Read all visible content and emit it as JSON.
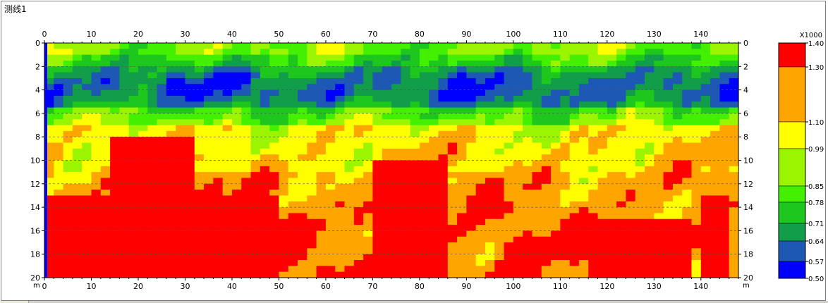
{
  "window": {
    "title": "测线1"
  },
  "chart_data": {
    "type": "heatmap",
    "title": "",
    "xlabel": "",
    "ylabel": "",
    "x_unit": "m",
    "y_unit": "m",
    "xlim": [
      0,
      148
    ],
    "ylim": [
      0,
      20
    ],
    "x_ticks": [
      0,
      10,
      20,
      30,
      40,
      50,
      60,
      70,
      80,
      90,
      100,
      110,
      120,
      130,
      140
    ],
    "y_ticks": [
      0,
      2,
      4,
      6,
      8,
      10,
      12,
      14,
      16,
      18,
      20
    ],
    "y_direction": "down",
    "grid": "dashed horizontal",
    "colorbar": {
      "multiplier": "X1000",
      "placement": "right",
      "levels": [
        0.5,
        0.57,
        0.64,
        0.71,
        0.78,
        0.85,
        0.99,
        1.1,
        1.3,
        1.4
      ],
      "labels": [
        "1.40",
        "1.30",
        "1.10",
        "0.99",
        "0.85",
        "0.78",
        "0.71",
        "0.64",
        "0.57",
        "0.50"
      ],
      "colors": [
        "#0000ff",
        "#1c58b4",
        "#119d4a",
        "#1ec71e",
        "#42f000",
        "#9cf500",
        "#ffff00",
        "#ffa500",
        "#ff0000"
      ]
    },
    "layers": {
      "dark_blue_band": {
        "depth_top": 2.2,
        "depth_bottom": 5.4
      },
      "green_band": {
        "depth_top": 0.8,
        "depth_bottom": 6.8
      },
      "yellow_band": {
        "depth_top": 6.8,
        "depth_bottom": 11.5
      },
      "orange_band": {
        "depth_top": 9.5,
        "depth_bottom": 20
      },
      "red_zones": [
        {
          "x_from": 1,
          "x_to": 50,
          "depth_top": 13
        },
        {
          "x_from": 15,
          "x_to": 31,
          "depth_top": 8
        },
        {
          "x_from": 70,
          "x_to": 85,
          "depth_top": 10
        },
        {
          "x_from": 117,
          "x_to": 137,
          "depth_top": 15
        },
        {
          "x_from": 140,
          "x_to": 146,
          "depth_top": 13
        }
      ]
    }
  }
}
